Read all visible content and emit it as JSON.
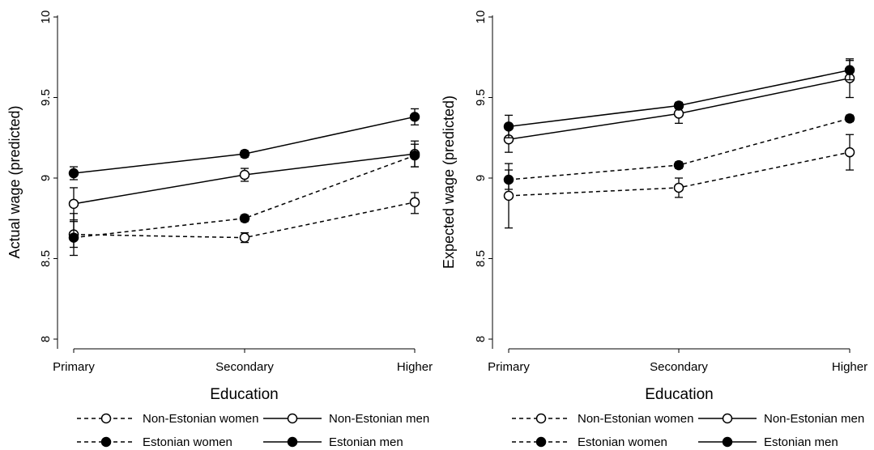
{
  "chart_data": [
    {
      "type": "line",
      "title": "",
      "xlabel": "Education",
      "ylabel": "Actual wage (predicted)",
      "categories": [
        "Primary",
        "Secondary",
        "Higher"
      ],
      "ylim": [
        8,
        10
      ],
      "yticks": [
        "8",
        "8.5",
        "9",
        "9.5",
        "10"
      ],
      "grid": false,
      "legend": "bottom",
      "series": [
        {
          "name": "Non-Estonian women",
          "marker": "hollow",
          "dash": true,
          "values": [
            8.65,
            8.63,
            8.85
          ],
          "ci": [
            [
              8.57,
              8.73
            ],
            [
              8.6,
              8.66
            ],
            [
              8.78,
              8.91
            ]
          ]
        },
        {
          "name": "Non-Estonian men",
          "marker": "hollow",
          "dash": false,
          "values": [
            8.84,
            9.02,
            9.15
          ],
          "ci": [
            [
              8.74,
              8.94
            ],
            [
              8.98,
              9.06
            ],
            [
              9.07,
              9.23
            ]
          ]
        },
        {
          "name": "Estonian women",
          "marker": "filled",
          "dash": true,
          "values": [
            8.63,
            8.75,
            9.14
          ],
          "ci": [
            [
              8.52,
              8.78
            ],
            [
              8.73,
              8.77
            ],
            [
              9.07,
              9.21
            ]
          ]
        },
        {
          "name": "Estonian men",
          "marker": "filled",
          "dash": false,
          "values": [
            9.03,
            9.15,
            9.38
          ],
          "ci": [
            [
              8.99,
              9.07
            ],
            [
              9.13,
              9.17
            ],
            [
              9.33,
              9.43
            ]
          ]
        }
      ]
    },
    {
      "type": "line",
      "title": "",
      "xlabel": "Education",
      "ylabel": "Expected wage (predicted)",
      "categories": [
        "Primary",
        "Secondary",
        "Higher"
      ],
      "ylim": [
        8,
        10
      ],
      "yticks": [
        "8",
        "8.5",
        "9",
        "9.5",
        "10"
      ],
      "grid": false,
      "legend": "bottom",
      "series": [
        {
          "name": "Non-Estonian women",
          "marker": "hollow",
          "dash": true,
          "values": [
            8.89,
            8.94,
            9.16
          ],
          "ci": [
            [
              8.69,
              9.09
            ],
            [
              8.88,
              9.0
            ],
            [
              9.05,
              9.27
            ]
          ]
        },
        {
          "name": "Non-Estonian men",
          "marker": "hollow",
          "dash": false,
          "values": [
            9.24,
            9.4,
            9.62
          ],
          "ci": [
            [
              9.16,
              9.32
            ],
            [
              9.34,
              9.46
            ],
            [
              9.5,
              9.74
            ]
          ]
        },
        {
          "name": "Estonian women",
          "marker": "filled",
          "dash": true,
          "values": [
            8.99,
            9.08,
            9.37
          ],
          "ci": [
            [
              8.93,
              9.05
            ],
            [
              9.06,
              9.1
            ],
            [
              9.35,
              9.39
            ]
          ]
        },
        {
          "name": "Estonian men",
          "marker": "filled",
          "dash": false,
          "values": [
            9.32,
            9.45,
            9.67
          ],
          "ci": [
            [
              9.25,
              9.39
            ],
            [
              9.43,
              9.47
            ],
            [
              9.61,
              9.73
            ]
          ]
        }
      ]
    }
  ]
}
